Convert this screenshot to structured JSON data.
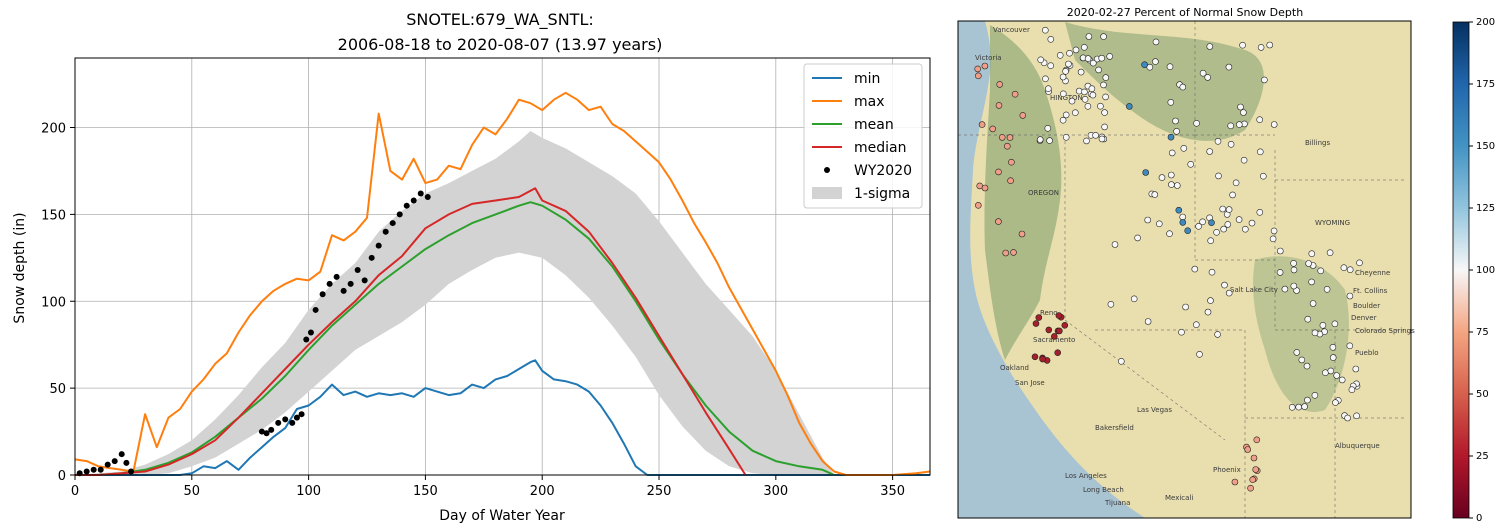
{
  "chart_data": [
    {
      "type": "line",
      "title": "SNOTEL:679_WA_SNTL:",
      "subtitle": "2006-08-18 to 2020-08-07 (13.97 years)",
      "xlabel": "Day of Water Year",
      "ylabel": "Snow depth (in)",
      "xlim": [
        0,
        366
      ],
      "ylim": [
        0,
        240
      ],
      "xticks": [
        0,
        50,
        100,
        150,
        200,
        250,
        300,
        350
      ],
      "yticks": [
        0,
        50,
        100,
        150,
        200
      ],
      "grid": true,
      "legend_position": "top-right",
      "colors": {
        "min": "#1f77b4",
        "max": "#ff7f0e",
        "mean": "#2ca02c",
        "median": "#d62728",
        "wy2020": "#000000",
        "sigma": "#d3d3d3"
      },
      "legend": [
        {
          "label": "min",
          "kind": "line",
          "color": "#1f77b4"
        },
        {
          "label": "max",
          "kind": "line",
          "color": "#ff7f0e"
        },
        {
          "label": "mean",
          "kind": "line",
          "color": "#2ca02c"
        },
        {
          "label": "median",
          "kind": "line",
          "color": "#d62728"
        },
        {
          "label": "WY2020",
          "kind": "dot",
          "color": "#000000"
        },
        {
          "label": "1-sigma",
          "kind": "patch",
          "color": "#d3d3d3"
        }
      ],
      "series": [
        {
          "name": "max",
          "x": [
            0,
            5,
            10,
            15,
            20,
            25,
            30,
            35,
            40,
            45,
            50,
            55,
            60,
            65,
            70,
            75,
            80,
            85,
            90,
            95,
            100,
            105,
            110,
            115,
            120,
            125,
            130,
            135,
            140,
            145,
            150,
            155,
            160,
            165,
            170,
            175,
            180,
            185,
            190,
            195,
            200,
            205,
            210,
            215,
            220,
            225,
            230,
            235,
            240,
            245,
            250,
            255,
            260,
            265,
            270,
            275,
            280,
            285,
            290,
            295,
            300,
            305,
            310,
            315,
            320,
            325,
            330,
            340,
            350,
            360,
            366
          ],
          "y": [
            9,
            8,
            5,
            4,
            3,
            2,
            35,
            16,
            33,
            38,
            48,
            55,
            64,
            70,
            82,
            92,
            100,
            106,
            110,
            113,
            112,
            117,
            138,
            135,
            140,
            148,
            208,
            175,
            170,
            182,
            168,
            170,
            178,
            176,
            190,
            200,
            196,
            205,
            216,
            214,
            210,
            216,
            220,
            216,
            210,
            212,
            202,
            198,
            192,
            186,
            180,
            170,
            158,
            145,
            134,
            122,
            108,
            96,
            84,
            72,
            60,
            46,
            30,
            18,
            8,
            2,
            0,
            0,
            0,
            1,
            2
          ]
        },
        {
          "name": "mean",
          "x": [
            0,
            10,
            20,
            30,
            40,
            50,
            60,
            70,
            80,
            90,
            100,
            110,
            120,
            130,
            140,
            150,
            160,
            170,
            180,
            190,
            195,
            200,
            210,
            220,
            230,
            240,
            250,
            260,
            270,
            280,
            290,
            300,
            310,
            320,
            325
          ],
          "y": [
            0,
            0,
            1,
            3,
            7,
            13,
            22,
            33,
            44,
            57,
            72,
            86,
            98,
            110,
            120,
            130,
            138,
            145,
            150,
            155,
            157,
            155,
            147,
            136,
            120,
            100,
            78,
            58,
            40,
            25,
            14,
            8,
            5,
            3,
            0
          ]
        },
        {
          "name": "median",
          "x": [
            0,
            10,
            20,
            30,
            40,
            50,
            60,
            70,
            80,
            90,
            100,
            110,
            120,
            130,
            140,
            150,
            160,
            170,
            180,
            190,
            197,
            200,
            210,
            220,
            230,
            240,
            250,
            260,
            270,
            280,
            287
          ],
          "y": [
            0,
            0,
            1,
            2,
            6,
            12,
            20,
            33,
            47,
            61,
            75,
            88,
            100,
            115,
            126,
            142,
            150,
            156,
            158,
            160,
            165,
            158,
            152,
            140,
            122,
            102,
            80,
            58,
            36,
            15,
            0
          ]
        },
        {
          "name": "min",
          "x": [
            0,
            45,
            50,
            55,
            60,
            65,
            70,
            75,
            80,
            85,
            90,
            95,
            100,
            105,
            110,
            115,
            120,
            125,
            130,
            135,
            140,
            145,
            150,
            155,
            160,
            165,
            170,
            175,
            180,
            185,
            190,
            195,
            197,
            200,
            205,
            210,
            215,
            220,
            225,
            230,
            235,
            240,
            245,
            366
          ],
          "y": [
            0,
            0,
            1,
            5,
            4,
            8,
            3,
            10,
            16,
            22,
            27,
            38,
            40,
            45,
            52,
            46,
            48,
            45,
            47,
            46,
            47,
            45,
            50,
            48,
            46,
            47,
            52,
            50,
            55,
            57,
            61,
            65,
            66,
            60,
            55,
            54,
            52,
            48,
            40,
            30,
            18,
            5,
            0,
            0
          ]
        },
        {
          "name": "sigma_upper",
          "x": [
            0,
            20,
            30,
            40,
            50,
            60,
            70,
            80,
            90,
            100,
            110,
            120,
            130,
            140,
            150,
            160,
            170,
            180,
            190,
            195,
            200,
            210,
            220,
            230,
            240,
            250,
            260,
            270,
            280,
            290,
            300,
            310,
            320,
            325
          ],
          "y": [
            0,
            2,
            6,
            12,
            20,
            32,
            46,
            62,
            76,
            95,
            110,
            122,
            140,
            152,
            162,
            168,
            175,
            182,
            192,
            198,
            194,
            188,
            180,
            172,
            162,
            146,
            128,
            110,
            95,
            80,
            60,
            35,
            10,
            0
          ]
        },
        {
          "name": "sigma_lower",
          "x": [
            0,
            20,
            30,
            40,
            50,
            60,
            70,
            80,
            90,
            100,
            110,
            120,
            130,
            140,
            150,
            160,
            170,
            180,
            190,
            200,
            210,
            220,
            230,
            240,
            250,
            260,
            270,
            280,
            290,
            300,
            310,
            320,
            325
          ],
          "y": [
            0,
            0,
            0,
            1,
            5,
            10,
            18,
            26,
            36,
            48,
            60,
            72,
            80,
            88,
            98,
            110,
            118,
            125,
            128,
            125,
            115,
            102,
            86,
            68,
            46,
            28,
            14,
            5,
            1,
            0,
            0,
            0,
            0
          ]
        },
        {
          "name": "WY2020",
          "x": [
            2,
            5,
            8,
            11,
            14,
            17,
            20,
            22,
            24,
            80,
            82,
            84,
            87,
            90,
            93,
            95,
            97,
            99,
            101,
            103,
            106,
            109,
            112,
            115,
            118,
            121,
            124,
            127,
            130,
            133,
            136,
            139,
            142,
            145,
            148,
            151
          ],
          "y": [
            1,
            2,
            3,
            3,
            6,
            8,
            12,
            7,
            2,
            25,
            24,
            26,
            30,
            32,
            30,
            33,
            35,
            78,
            82,
            95,
            104,
            110,
            114,
            106,
            110,
            118,
            112,
            125,
            132,
            140,
            145,
            150,
            155,
            158,
            162,
            160
          ]
        }
      ]
    },
    {
      "type": "heatmap",
      "title": "2020-02-27 Percent of Normal Snow Depth",
      "colorbar": {
        "ticks": [
          0,
          25,
          50,
          75,
          100,
          125,
          150,
          175,
          200
        ],
        "min": 0,
        "max": 200
      }
    }
  ],
  "map": {
    "labels": [
      "Vancouver",
      "Victoria",
      "HINGTON",
      "Billings",
      "OREGON",
      "WYOMING",
      "Cheyenne",
      "Ft. Collins",
      "Boulder",
      "Denver",
      "Colorado Springs",
      "Pueblo",
      "Reno",
      "Sacramento",
      "Oakland",
      "San Jose",
      "Bakersfield",
      "Las Vegas",
      "Los Angeles",
      "Long Beach",
      "Tijuana",
      "Mexicali",
      "Phoenix",
      "Albuquerque",
      "Salt Lake City"
    ]
  }
}
